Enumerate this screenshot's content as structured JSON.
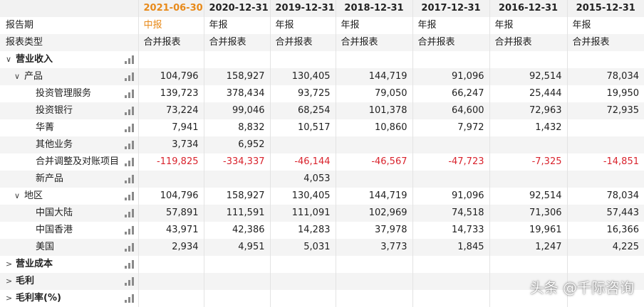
{
  "columns": [
    "2021-06-30",
    "2020-12-31",
    "2019-12-31",
    "2018-12-31",
    "2017-12-31",
    "2016-12-31",
    "2015-12-31"
  ],
  "header_label": "",
  "report_period": {
    "label": "报告期",
    "values": [
      "中报",
      "年报",
      "年报",
      "年报",
      "年报",
      "年报",
      "年报"
    ]
  },
  "report_type": {
    "label": "报表类型",
    "values": [
      "合并报表",
      "合并报表",
      "合并报表",
      "合并报表",
      "合并报表",
      "合并报表",
      "合并报表"
    ]
  },
  "rows": [
    {
      "label": "营业收入",
      "level": 0,
      "toggle": "∨",
      "bold": true,
      "values": [
        "",
        "",
        "",
        "",
        "",
        "",
        ""
      ]
    },
    {
      "label": "产品",
      "level": 1,
      "toggle": "∨",
      "bold": false,
      "values": [
        "104,796",
        "158,927",
        "130,405",
        "144,719",
        "91,096",
        "92,514",
        "78,034"
      ]
    },
    {
      "label": "投资管理服务",
      "level": 2,
      "toggle": "",
      "bold": false,
      "values": [
        "139,723",
        "378,434",
        "93,725",
        "79,050",
        "66,247",
        "25,444",
        "19,950"
      ]
    },
    {
      "label": "投资银行",
      "level": 2,
      "toggle": "",
      "bold": false,
      "values": [
        "73,224",
        "99,046",
        "68,254",
        "101,378",
        "64,600",
        "72,963",
        "72,935"
      ]
    },
    {
      "label": "华菁",
      "level": 2,
      "toggle": "",
      "bold": false,
      "values": [
        "7,941",
        "8,832",
        "10,517",
        "10,860",
        "7,972",
        "1,432",
        ""
      ]
    },
    {
      "label": "其他业务",
      "level": 2,
      "toggle": "",
      "bold": false,
      "values": [
        "3,734",
        "6,952",
        "",
        "",
        "",
        "",
        ""
      ]
    },
    {
      "label": "合并调整及对账项目",
      "level": 2,
      "toggle": "",
      "bold": false,
      "values": [
        "-119,825",
        "-334,337",
        "-46,144",
        "-46,567",
        "-47,723",
        "-7,325",
        "-14,851"
      ]
    },
    {
      "label": "新产品",
      "level": 2,
      "toggle": "",
      "bold": false,
      "values": [
        "",
        "",
        "4,053",
        "",
        "",
        "",
        ""
      ]
    },
    {
      "label": "地区",
      "level": 1,
      "toggle": "∨",
      "bold": false,
      "values": [
        "104,796",
        "158,927",
        "130,405",
        "144,719",
        "91,096",
        "92,514",
        "78,034"
      ]
    },
    {
      "label": "中国大陆",
      "level": 2,
      "toggle": "",
      "bold": false,
      "values": [
        "57,891",
        "111,591",
        "111,091",
        "102,969",
        "74,518",
        "71,306",
        "57,443"
      ]
    },
    {
      "label": "中国香港",
      "level": 2,
      "toggle": "",
      "bold": false,
      "values": [
        "43,971",
        "42,386",
        "14,283",
        "37,978",
        "14,733",
        "19,961",
        "16,366"
      ]
    },
    {
      "label": "美国",
      "level": 2,
      "toggle": "",
      "bold": false,
      "values": [
        "2,934",
        "4,951",
        "5,031",
        "3,773",
        "1,845",
        "1,247",
        "4,225"
      ]
    },
    {
      "label": "营业成本",
      "level": 0,
      "toggle": ">",
      "bold": true,
      "values": [
        "",
        "",
        "",
        "",
        "",
        "",
        ""
      ]
    },
    {
      "label": "毛利",
      "level": 0,
      "toggle": ">",
      "bold": true,
      "values": [
        "",
        "",
        "",
        "",
        "",
        "",
        ""
      ]
    },
    {
      "label": "毛利率(%)",
      "level": 0,
      "toggle": ">",
      "bold": true,
      "values": [
        "",
        "",
        "",
        "",
        "",
        "",
        ""
      ]
    }
  ],
  "icons": {
    "chart": "bar-chart-icon"
  },
  "colors": {
    "highlight": "#e88a1a",
    "negative": "#d9232d"
  },
  "watermark": "头条 @千际咨询"
}
